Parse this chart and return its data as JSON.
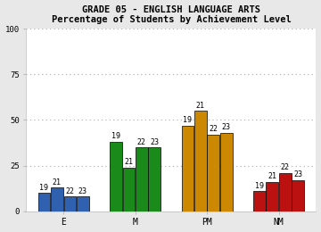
{
  "title_line1": "GRADE 05 - ENGLISH LANGUAGE ARTS",
  "title_line2": "Percentage of Students by Achievement Level",
  "categories": [
    "E",
    "M",
    "PM",
    "NM"
  ],
  "years": [
    "19",
    "21",
    "22",
    "23"
  ],
  "bar_heights": {
    "E": [
      10,
      13,
      8,
      8
    ],
    "M": [
      38,
      24,
      35,
      35
    ],
    "PM": [
      47,
      55,
      42,
      43
    ],
    "NM": [
      11,
      16,
      21,
      17
    ]
  },
  "colors": {
    "E": "#3060b0",
    "M": "#1a8a1a",
    "PM": "#cc8800",
    "NM": "#bb1111"
  },
  "ylim": [
    0,
    100
  ],
  "yticks": [
    0,
    25,
    50,
    75,
    100
  ],
  "plot_bg": "#ffffff",
  "fig_bg": "#e8e8e8",
  "grid_color": "#aaaaaa",
  "title_fontsize": 7.5,
  "tick_fontsize": 6.5,
  "label_fontsize": 7,
  "bar_label_fontsize": 6
}
